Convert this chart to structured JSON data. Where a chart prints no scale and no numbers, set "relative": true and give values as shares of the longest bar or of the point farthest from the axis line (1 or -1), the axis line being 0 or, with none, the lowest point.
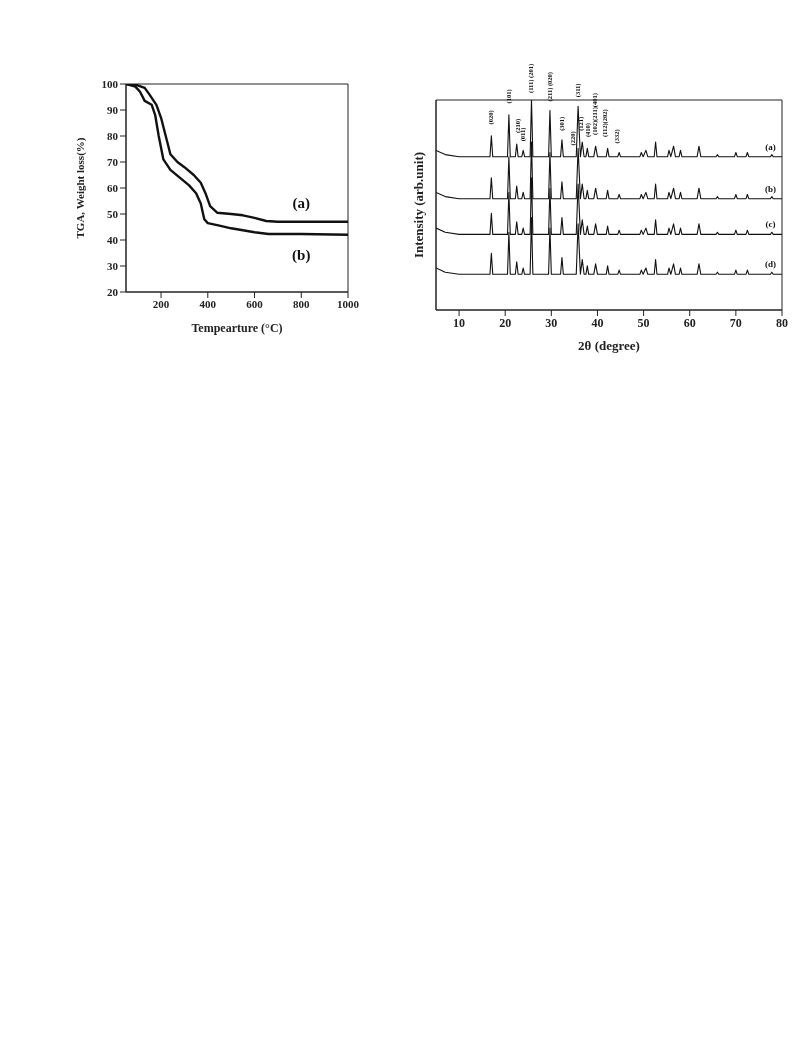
{
  "chart_data": [
    {
      "type": "line",
      "xlabel": "Tempearture (°C)",
      "ylabel": "TGA, Weight loss(%)",
      "xlim": [
        50,
        1000
      ],
      "xticks": [
        200,
        400,
        600,
        800,
        1000
      ],
      "ylim": [
        20,
        100
      ],
      "yticks": [
        20,
        30,
        40,
        50,
        60,
        70,
        80,
        90,
        100
      ],
      "series": [
        {
          "name": "(a)",
          "color": "#111111",
          "x": [
            50,
            100,
            130,
            150,
            180,
            200,
            220,
            240,
            270,
            300,
            340,
            370,
            390,
            410,
            440,
            500,
            550,
            600,
            650,
            700,
            800,
            1000
          ],
          "values": [
            100,
            99.5,
            98.5,
            96,
            92,
            87,
            80,
            73,
            70,
            68,
            65,
            62,
            58,
            53,
            50.5,
            50,
            49.5,
            48.5,
            47.3,
            47,
            47,
            47
          ]
        },
        {
          "name": "(b)",
          "color": "#111111",
          "x": [
            50,
            90,
            110,
            130,
            160,
            175,
            190,
            210,
            240,
            280,
            320,
            350,
            370,
            385,
            400,
            450,
            500,
            600,
            660,
            800,
            1000
          ],
          "values": [
            100,
            99,
            97,
            93.5,
            92,
            88,
            80,
            71,
            67,
            64,
            61,
            58,
            54,
            48,
            46.5,
            45.5,
            44.5,
            43,
            42.3,
            42.3,
            42
          ]
        }
      ]
    },
    {
      "type": "line",
      "relative": true,
      "xlabel": "2θ (degree)",
      "ylabel": "Intensity (arb.unit)",
      "xlim": [
        5,
        80
      ],
      "xticks": [
        10,
        20,
        30,
        40,
        50,
        60,
        70,
        80
      ],
      "x": [
        5,
        7,
        10,
        16.7,
        17,
        17.3,
        20.5,
        20.8,
        21.1,
        22.2,
        22.5,
        22.8,
        23.6,
        23.9,
        24.2,
        25.4,
        25.7,
        26,
        29.4,
        29.7,
        30,
        32,
        32.3,
        32.6,
        35.4,
        35.8,
        36.3,
        36.7,
        37.1,
        37.5,
        37.8,
        38.1,
        39.2,
        39.6,
        40,
        41.9,
        42.2,
        42.5,
        44.4,
        44.7,
        45,
        49.2,
        49.5,
        49.9,
        50.5,
        50.9,
        52.3,
        52.6,
        52.9,
        55.2,
        55.5,
        55.9,
        56.5,
        56.9,
        57.7,
        58,
        58.3,
        61.6,
        62,
        62.4,
        65.7,
        66,
        66.3,
        69.7,
        70,
        70.3,
        72.2,
        72.5,
        72.8,
        77.5,
        77.8,
        78.1,
        80
      ],
      "series": [
        {
          "name": "(a)",
          "color": "#111111",
          "values": [
            0.76,
            0.74,
            0.73,
            0.73,
            0.83,
            0.73,
            0.73,
            0.93,
            0.73,
            0.73,
            0.79,
            0.73,
            0.73,
            0.76,
            0.73,
            0.73,
            1,
            0.73,
            0.73,
            0.95,
            0.73,
            0.73,
            0.81,
            0.73,
            0.73,
            0.97,
            0.73,
            0.8,
            0.73,
            0.73,
            0.77,
            0.73,
            0.73,
            0.78,
            0.73,
            0.73,
            0.77,
            0.73,
            0.73,
            0.75,
            0.73,
            0.73,
            0.75,
            0.73,
            0.76,
            0.73,
            0.73,
            0.8,
            0.73,
            0.73,
            0.76,
            0.73,
            0.78,
            0.73,
            0.73,
            0.76,
            0.73,
            0.73,
            0.78,
            0.73,
            0.73,
            0.74,
            0.73,
            0.73,
            0.75,
            0.73,
            0.73,
            0.75,
            0.73,
            0.73,
            0.74,
            0.73,
            0.73
          ]
        },
        {
          "name": "(b)",
          "color": "#111111",
          "values": [
            0.56,
            0.54,
            0.53,
            0.53,
            0.63,
            0.53,
            0.53,
            0.73,
            0.53,
            0.53,
            0.59,
            0.53,
            0.53,
            0.56,
            0.53,
            0.53,
            0.8,
            0.53,
            0.53,
            0.75,
            0.53,
            0.53,
            0.61,
            0.53,
            0.53,
            0.77,
            0.53,
            0.6,
            0.53,
            0.53,
            0.57,
            0.53,
            0.53,
            0.58,
            0.53,
            0.53,
            0.57,
            0.53,
            0.53,
            0.55,
            0.53,
            0.53,
            0.55,
            0.53,
            0.56,
            0.53,
            0.53,
            0.6,
            0.53,
            0.53,
            0.56,
            0.53,
            0.58,
            0.53,
            0.53,
            0.56,
            0.53,
            0.53,
            0.58,
            0.53,
            0.53,
            0.54,
            0.53,
            0.53,
            0.55,
            0.53,
            0.53,
            0.55,
            0.53,
            0.53,
            0.54,
            0.53,
            0.53
          ]
        },
        {
          "name": "(c)",
          "color": "#111111",
          "values": [
            0.39,
            0.37,
            0.36,
            0.36,
            0.46,
            0.36,
            0.36,
            0.56,
            0.36,
            0.36,
            0.42,
            0.36,
            0.36,
            0.39,
            0.36,
            0.36,
            0.63,
            0.36,
            0.36,
            0.58,
            0.36,
            0.36,
            0.44,
            0.36,
            0.36,
            0.6,
            0.36,
            0.43,
            0.36,
            0.36,
            0.4,
            0.36,
            0.36,
            0.41,
            0.36,
            0.36,
            0.4,
            0.36,
            0.36,
            0.38,
            0.36,
            0.36,
            0.38,
            0.36,
            0.39,
            0.36,
            0.36,
            0.43,
            0.36,
            0.36,
            0.39,
            0.36,
            0.41,
            0.36,
            0.36,
            0.39,
            0.36,
            0.36,
            0.41,
            0.36,
            0.36,
            0.37,
            0.36,
            0.36,
            0.38,
            0.36,
            0.36,
            0.38,
            0.36,
            0.36,
            0.37,
            0.36,
            0.36
          ]
        },
        {
          "name": "(d)",
          "color": "#111111",
          "values": [
            0.2,
            0.18,
            0.17,
            0.17,
            0.27,
            0.17,
            0.17,
            0.37,
            0.17,
            0.17,
            0.23,
            0.17,
            0.17,
            0.2,
            0.17,
            0.17,
            0.44,
            0.17,
            0.17,
            0.39,
            0.17,
            0.17,
            0.25,
            0.17,
            0.17,
            0.41,
            0.17,
            0.24,
            0.17,
            0.17,
            0.21,
            0.17,
            0.17,
            0.22,
            0.17,
            0.17,
            0.21,
            0.17,
            0.17,
            0.19,
            0.17,
            0.17,
            0.19,
            0.17,
            0.2,
            0.17,
            0.17,
            0.24,
            0.17,
            0.17,
            0.2,
            0.17,
            0.22,
            0.17,
            0.17,
            0.2,
            0.17,
            0.17,
            0.22,
            0.17,
            0.17,
            0.18,
            0.17,
            0.17,
            0.19,
            0.17,
            0.17,
            0.19,
            0.17,
            0.17,
            0.18,
            0.17,
            0.17
          ]
        }
      ],
      "annotations": [
        {
          "text": "(020)",
          "x": 17,
          "y": 0.85
        },
        {
          "text": "(101)",
          "x": 20.8,
          "y": 0.95
        },
        {
          "text": "(210)",
          "x": 22.7,
          "y": 0.81
        },
        {
          "text": "(011)",
          "x": 23.9,
          "y": 0.77
        },
        {
          "text": "(111) (201)",
          "x": 25.7,
          "y": 1
        },
        {
          "text": "(211) (020)",
          "x": 29.7,
          "y": 0.96
        },
        {
          "text": "(301)",
          "x": 32.3,
          "y": 0.82
        },
        {
          "text": "(220)",
          "x": 34.8,
          "y": 0.75
        },
        {
          "text": "(311)",
          "x": 35.8,
          "y": 0.98
        },
        {
          "text": "(121)",
          "x": 36.5,
          "y": 0.82
        },
        {
          "text": "(410)",
          "x": 38,
          "y": 0.79
        },
        {
          "text": "(102)(211)(401)",
          "x": 39.5,
          "y": 0.8
        },
        {
          "text": "(112)(202)",
          "x": 41.6,
          "y": 0.79
        },
        {
          "text": "(332)",
          "x": 44.3,
          "y": 0.76
        }
      ]
    }
  ]
}
